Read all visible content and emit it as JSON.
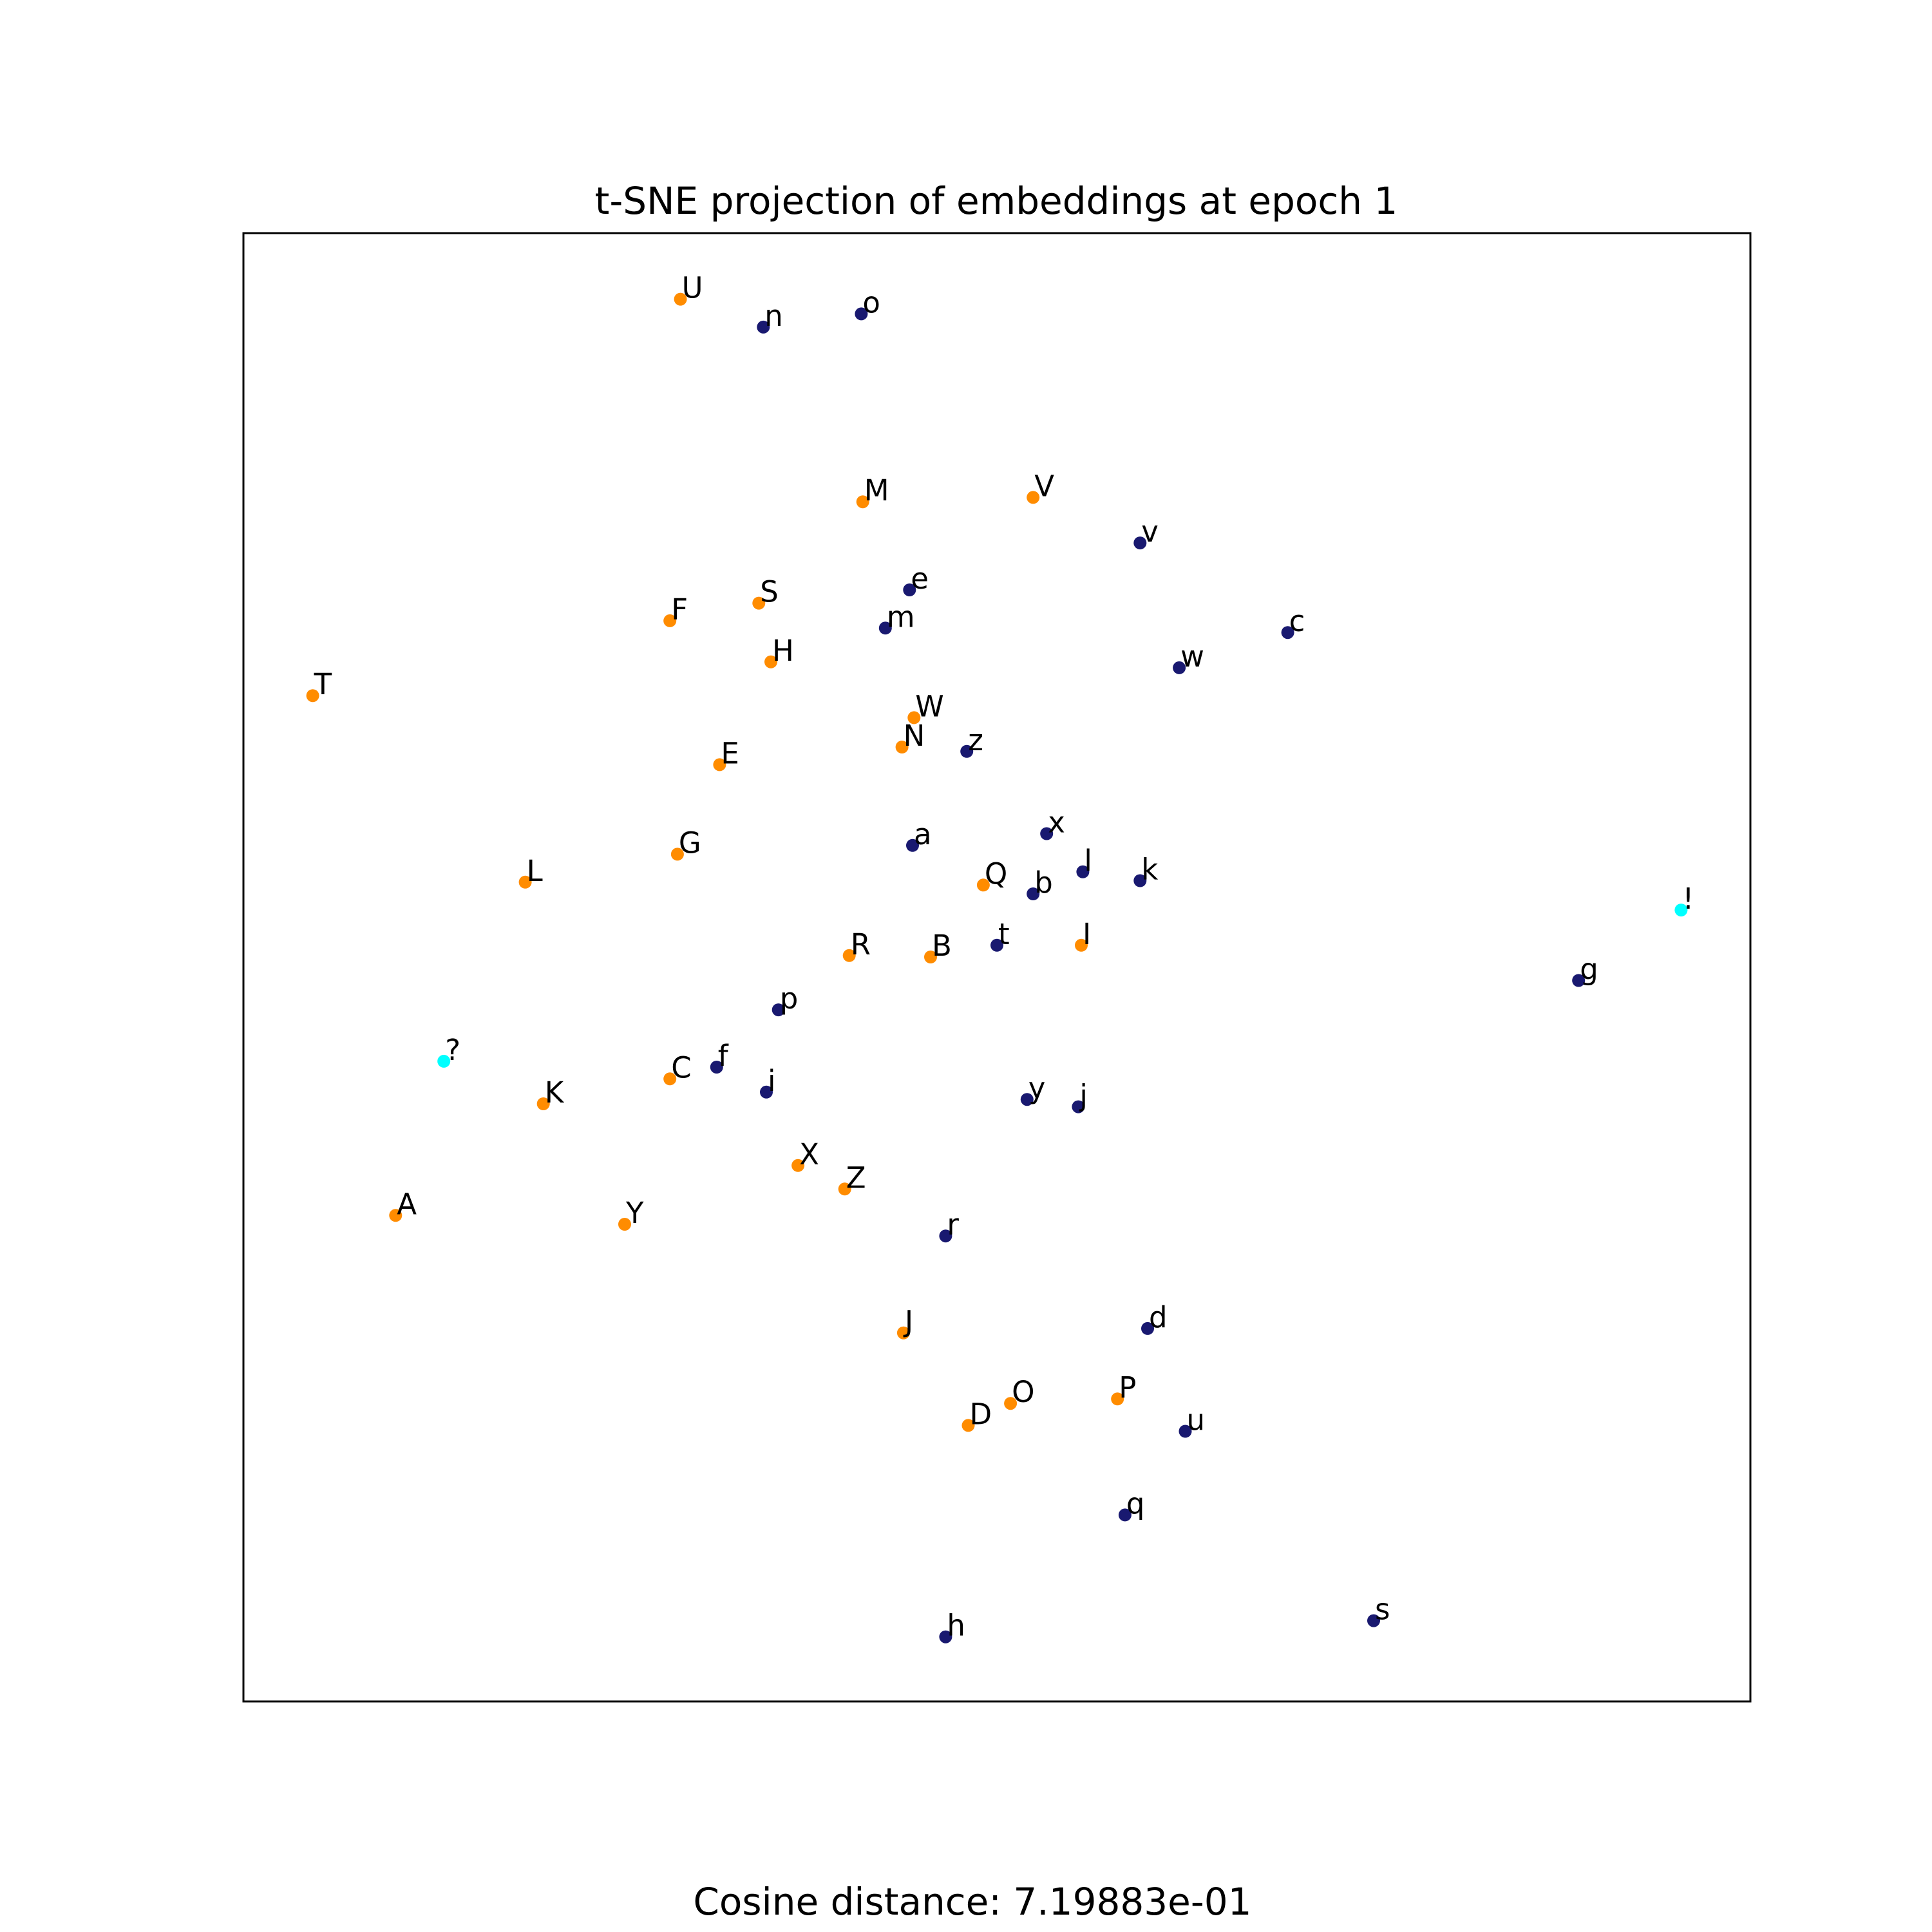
{
  "chart_data": {
    "type": "scatter",
    "title": "t-SNE projection of embeddings at epoch 1",
    "caption": "Cosine distance: 7.19883e-01",
    "xlim": [
      0,
      100
    ],
    "ylim": [
      0,
      100
    ],
    "grid": false,
    "axis_ticks": false,
    "colors": {
      "upper": "#ff8c00",
      "lower": "#191970",
      "punct": "#00ffff"
    },
    "points": [
      {
        "label": "U",
        "x": 29.0,
        "y": 95.5,
        "group": "upper"
      },
      {
        "label": "n",
        "x": 34.5,
        "y": 93.6,
        "group": "lower"
      },
      {
        "label": "o",
        "x": 41.0,
        "y": 94.5,
        "group": "lower"
      },
      {
        "label": "M",
        "x": 41.1,
        "y": 81.7,
        "group": "upper"
      },
      {
        "label": "V",
        "x": 52.4,
        "y": 82.0,
        "group": "upper"
      },
      {
        "label": "v",
        "x": 59.5,
        "y": 78.9,
        "group": "lower"
      },
      {
        "label": "e",
        "x": 44.2,
        "y": 75.7,
        "group": "lower"
      },
      {
        "label": "S",
        "x": 34.2,
        "y": 74.8,
        "group": "upper"
      },
      {
        "label": "F",
        "x": 28.3,
        "y": 73.6,
        "group": "upper"
      },
      {
        "label": "m",
        "x": 42.6,
        "y": 73.1,
        "group": "lower"
      },
      {
        "label": "c",
        "x": 69.3,
        "y": 72.8,
        "group": "lower"
      },
      {
        "label": "H",
        "x": 35.0,
        "y": 70.8,
        "group": "upper"
      },
      {
        "label": "w",
        "x": 62.1,
        "y": 70.4,
        "group": "lower"
      },
      {
        "label": "T",
        "x": 4.6,
        "y": 68.5,
        "group": "upper"
      },
      {
        "label": "W",
        "x": 44.5,
        "y": 67.0,
        "group": "upper"
      },
      {
        "label": "N",
        "x": 43.7,
        "y": 65.0,
        "group": "upper"
      },
      {
        "label": "z",
        "x": 48.0,
        "y": 64.7,
        "group": "lower"
      },
      {
        "label": "E",
        "x": 31.6,
        "y": 63.8,
        "group": "upper"
      },
      {
        "label": "x",
        "x": 53.3,
        "y": 59.1,
        "group": "lower"
      },
      {
        "label": "a",
        "x": 44.4,
        "y": 58.3,
        "group": "lower"
      },
      {
        "label": "G",
        "x": 28.8,
        "y": 57.7,
        "group": "upper"
      },
      {
        "label": "l",
        "x": 55.7,
        "y": 56.5,
        "group": "lower"
      },
      {
        "label": "L",
        "x": 18.7,
        "y": 55.8,
        "group": "upper"
      },
      {
        "label": "k",
        "x": 59.5,
        "y": 55.9,
        "group": "lower"
      },
      {
        "label": "Q",
        "x": 49.1,
        "y": 55.6,
        "group": "upper"
      },
      {
        "label": "b",
        "x": 52.4,
        "y": 55.0,
        "group": "lower"
      },
      {
        "label": "!",
        "x": 95.4,
        "y": 53.9,
        "group": "punct"
      },
      {
        "label": "t",
        "x": 50.0,
        "y": 51.5,
        "group": "lower"
      },
      {
        "label": "I",
        "x": 55.6,
        "y": 51.5,
        "group": "upper"
      },
      {
        "label": "R",
        "x": 40.2,
        "y": 50.8,
        "group": "upper"
      },
      {
        "label": "B",
        "x": 45.6,
        "y": 50.7,
        "group": "upper"
      },
      {
        "label": "g",
        "x": 88.6,
        "y": 49.1,
        "group": "lower"
      },
      {
        "label": "p",
        "x": 35.5,
        "y": 47.1,
        "group": "lower"
      },
      {
        "label": "?",
        "x": 13.3,
        "y": 43.6,
        "group": "punct"
      },
      {
        "label": "f",
        "x": 31.4,
        "y": 43.2,
        "group": "lower"
      },
      {
        "label": "C",
        "x": 28.3,
        "y": 42.4,
        "group": "upper"
      },
      {
        "label": "i",
        "x": 34.7,
        "y": 41.5,
        "group": "lower"
      },
      {
        "label": "K",
        "x": 19.9,
        "y": 40.7,
        "group": "upper"
      },
      {
        "label": "y",
        "x": 52.0,
        "y": 41.0,
        "group": "lower"
      },
      {
        "label": "j",
        "x": 55.4,
        "y": 40.5,
        "group": "lower"
      },
      {
        "label": "X",
        "x": 36.8,
        "y": 36.5,
        "group": "upper"
      },
      {
        "label": "Z",
        "x": 39.9,
        "y": 34.9,
        "group": "upper"
      },
      {
        "label": "A",
        "x": 10.1,
        "y": 33.1,
        "group": "upper"
      },
      {
        "label": "Y",
        "x": 25.3,
        "y": 32.5,
        "group": "upper"
      },
      {
        "label": "r",
        "x": 46.6,
        "y": 31.7,
        "group": "lower"
      },
      {
        "label": "J",
        "x": 43.8,
        "y": 25.1,
        "group": "upper"
      },
      {
        "label": "d",
        "x": 60.0,
        "y": 25.4,
        "group": "lower"
      },
      {
        "label": "P",
        "x": 58.0,
        "y": 20.6,
        "group": "upper"
      },
      {
        "label": "O",
        "x": 50.9,
        "y": 20.3,
        "group": "upper"
      },
      {
        "label": "D",
        "x": 48.1,
        "y": 18.8,
        "group": "upper"
      },
      {
        "label": "u",
        "x": 62.5,
        "y": 18.4,
        "group": "lower"
      },
      {
        "label": "q",
        "x": 58.5,
        "y": 12.7,
        "group": "lower"
      },
      {
        "label": "s",
        "x": 75.0,
        "y": 5.5,
        "group": "lower"
      },
      {
        "label": "h",
        "x": 46.6,
        "y": 4.4,
        "group": "lower"
      }
    ]
  }
}
